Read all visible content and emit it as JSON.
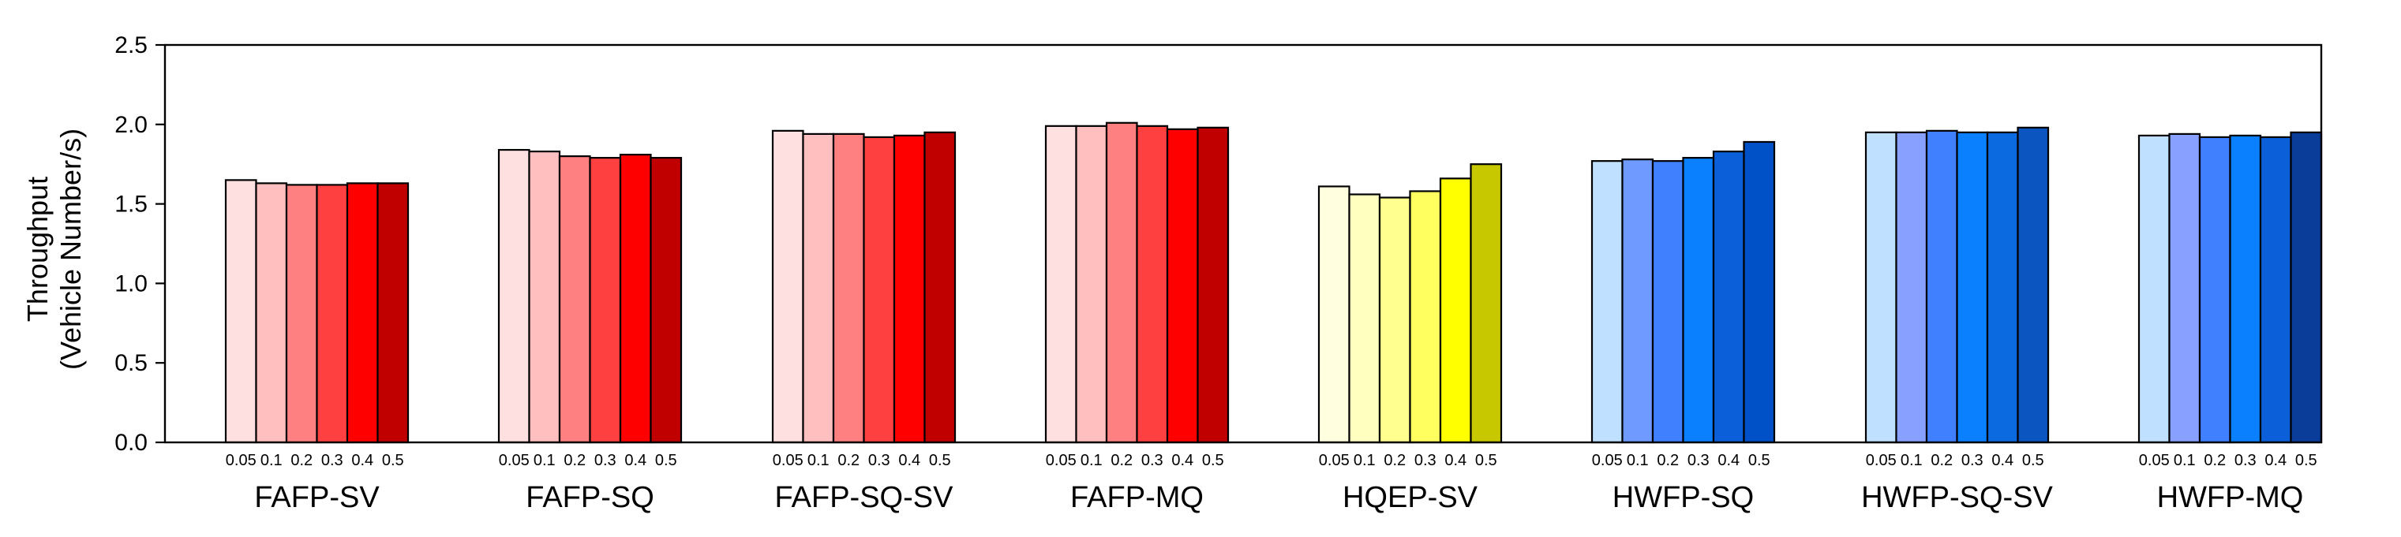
{
  "chart_data": {
    "type": "bar",
    "ylabel_lines": [
      "Throughput",
      "(Vehicle Number/s)"
    ],
    "ylim": [
      0,
      2.5
    ],
    "yticks": [
      "0.0",
      "0.5",
      "1.0",
      "1.5",
      "2.0",
      "2.5"
    ],
    "ytick_values": [
      0,
      0.5,
      1.0,
      1.5,
      2.0,
      2.5
    ],
    "grid": false,
    "level_labels": [
      "0.05",
      "0.1",
      "0.2",
      "0.3",
      "0.4",
      "0.5"
    ],
    "groups": [
      {
        "name": "FAFP-SV",
        "values": [
          1.65,
          1.63,
          1.62,
          1.62,
          1.63,
          1.63
        ],
        "colors": [
          "#FFE0E0",
          "#FFBFBF",
          "#FF8080",
          "#FF4040",
          "#FF0000",
          "#C00000"
        ]
      },
      {
        "name": "FAFP-SQ",
        "values": [
          1.84,
          1.83,
          1.8,
          1.79,
          1.81,
          1.79
        ],
        "colors": [
          "#FFE0E0",
          "#FFBFBF",
          "#FF8080",
          "#FF4040",
          "#FF0000",
          "#C00000"
        ]
      },
      {
        "name": "FAFP-SQ-SV",
        "values": [
          1.96,
          1.94,
          1.94,
          1.92,
          1.93,
          1.95
        ],
        "colors": [
          "#FFE0E0",
          "#FFBFBF",
          "#FF8080",
          "#FF4040",
          "#FF0000",
          "#C00000"
        ]
      },
      {
        "name": "FAFP-MQ",
        "values": [
          1.99,
          1.99,
          2.01,
          1.99,
          1.97,
          1.98
        ],
        "colors": [
          "#FFE0E0",
          "#FFBFBF",
          "#FF8080",
          "#FF4040",
          "#FF0000",
          "#C00000"
        ]
      },
      {
        "name": "HQEP-SV",
        "values": [
          1.61,
          1.56,
          1.54,
          1.58,
          1.66,
          1.75
        ],
        "colors": [
          "#FFFFE0",
          "#FFFFC0",
          "#FFFF90",
          "#FFFF60",
          "#FFFF00",
          "#C8C800"
        ]
      },
      {
        "name": "HWFP-SQ",
        "values": [
          1.77,
          1.78,
          1.77,
          1.79,
          1.83,
          1.89
        ],
        "colors": [
          "#C0E0FF",
          "#6F9AFF",
          "#4080FF",
          "#0A80FF",
          "#0B5FD8",
          "#0050C8"
        ]
      },
      {
        "name": "HWFP-SQ-SV",
        "values": [
          1.95,
          1.95,
          1.96,
          1.95,
          1.95,
          1.98
        ],
        "colors": [
          "#C0E0FF",
          "#88A0FF",
          "#4080FF",
          "#0A80FF",
          "#0B6AE0",
          "#0B55C0"
        ]
      },
      {
        "name": "HWFP-MQ",
        "values": [
          1.93,
          1.94,
          1.92,
          1.93,
          1.92,
          1.95
        ],
        "colors": [
          "#C0E0FF",
          "#88A0FF",
          "#4080FF",
          "#0A80FF",
          "#0B5FD8",
          "#0A3C9A"
        ]
      }
    ]
  }
}
